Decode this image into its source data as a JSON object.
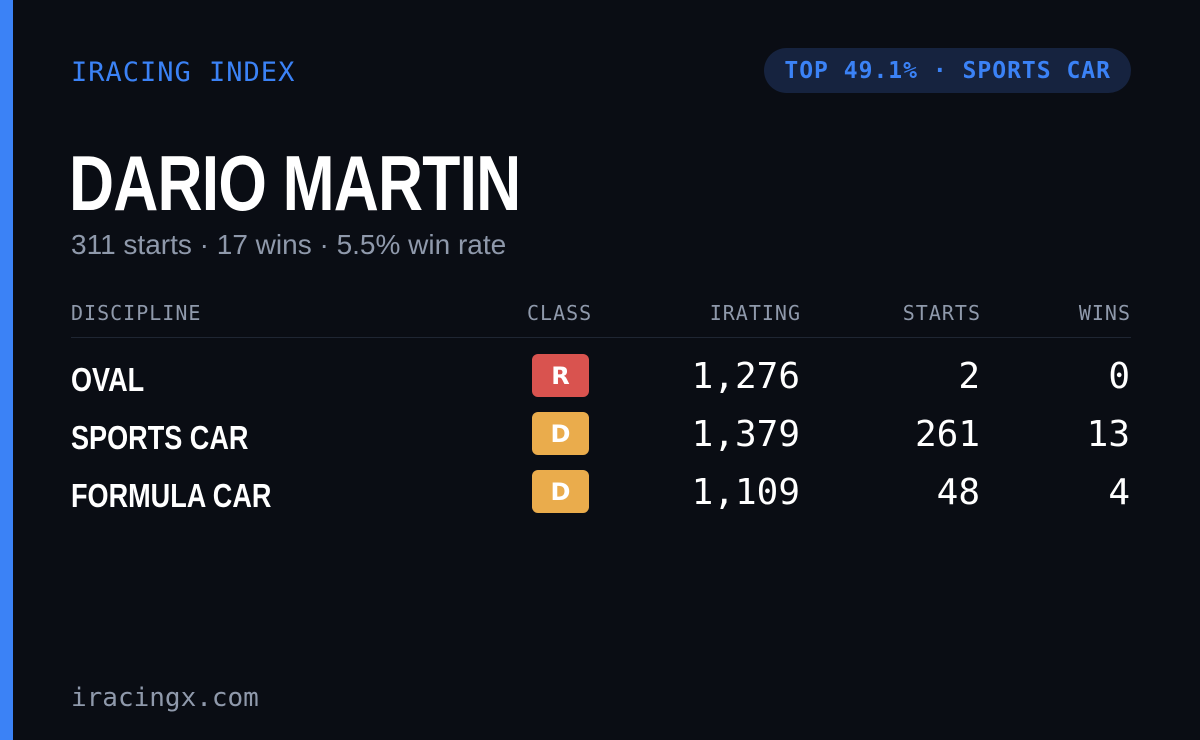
{
  "header": {
    "brand": "IRACING INDEX",
    "rank_badge": "TOP 49.1% · SPORTS CAR"
  },
  "driver": {
    "name": "DARIO MARTIN",
    "summary": "311 starts · 17 wins · 5.5% win rate"
  },
  "table": {
    "columns": {
      "discipline": "DISCIPLINE",
      "class": "CLASS",
      "irating": "IRATING",
      "starts": "STARTS",
      "wins": "WINS"
    },
    "rows": [
      {
        "discipline": "OVAL",
        "class": "R",
        "class_color": "#d9534f",
        "irating": "1,276",
        "starts": "2",
        "wins": "0"
      },
      {
        "discipline": "SPORTS CAR",
        "class": "D",
        "class_color": "#eaac4c",
        "irating": "1,379",
        "starts": "261",
        "wins": "13"
      },
      {
        "discipline": "FORMULA CAR",
        "class": "D",
        "class_color": "#eaac4c",
        "irating": "1,109",
        "starts": "48",
        "wins": "4"
      }
    ]
  },
  "footer": {
    "site": "iracingx.com"
  },
  "colors": {
    "accent": "#3b82f6",
    "background": "#0a0d14",
    "muted": "#8f99ab"
  }
}
